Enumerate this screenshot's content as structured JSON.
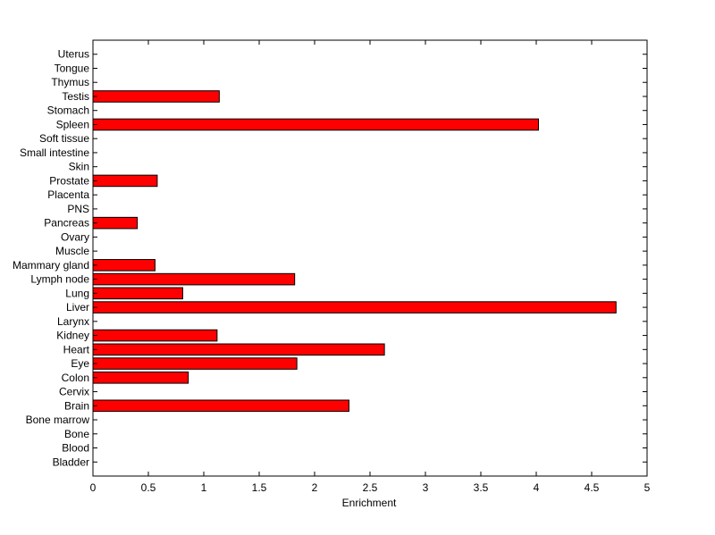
{
  "chart_data": {
    "type": "bar",
    "orientation": "horizontal",
    "title": "",
    "xlabel": "Enrichment",
    "ylabel": "",
    "xlim": [
      0,
      5
    ],
    "xticks": [
      "0",
      "0.5",
      "1",
      "1.5",
      "2",
      "2.5",
      "3",
      "3.5",
      "4",
      "4.5",
      "5"
    ],
    "grid": false,
    "bar_color": "#ff0000",
    "categories": [
      "Bladder",
      "Blood",
      "Bone",
      "Bone marrow",
      "Brain",
      "Cervix",
      "Colon",
      "Eye",
      "Heart",
      "Kidney",
      "Larynx",
      "Liver",
      "Lung",
      "Lymph node",
      "Mammary gland",
      "Muscle",
      "Ovary",
      "Pancreas",
      "PNS",
      "Placenta",
      "Prostate",
      "Skin",
      "Small intestine",
      "Soft tissue",
      "Spleen",
      "Stomach",
      "Testis",
      "Thymus",
      "Tongue",
      "Uterus"
    ],
    "values": [
      0,
      0,
      0,
      0,
      2.31,
      0,
      0.86,
      1.84,
      2.63,
      1.12,
      0,
      4.72,
      0.81,
      1.82,
      0.56,
      0,
      0,
      0.4,
      0,
      0,
      0.58,
      0,
      0,
      0,
      4.02,
      0,
      1.14,
      0,
      0,
      0
    ]
  }
}
